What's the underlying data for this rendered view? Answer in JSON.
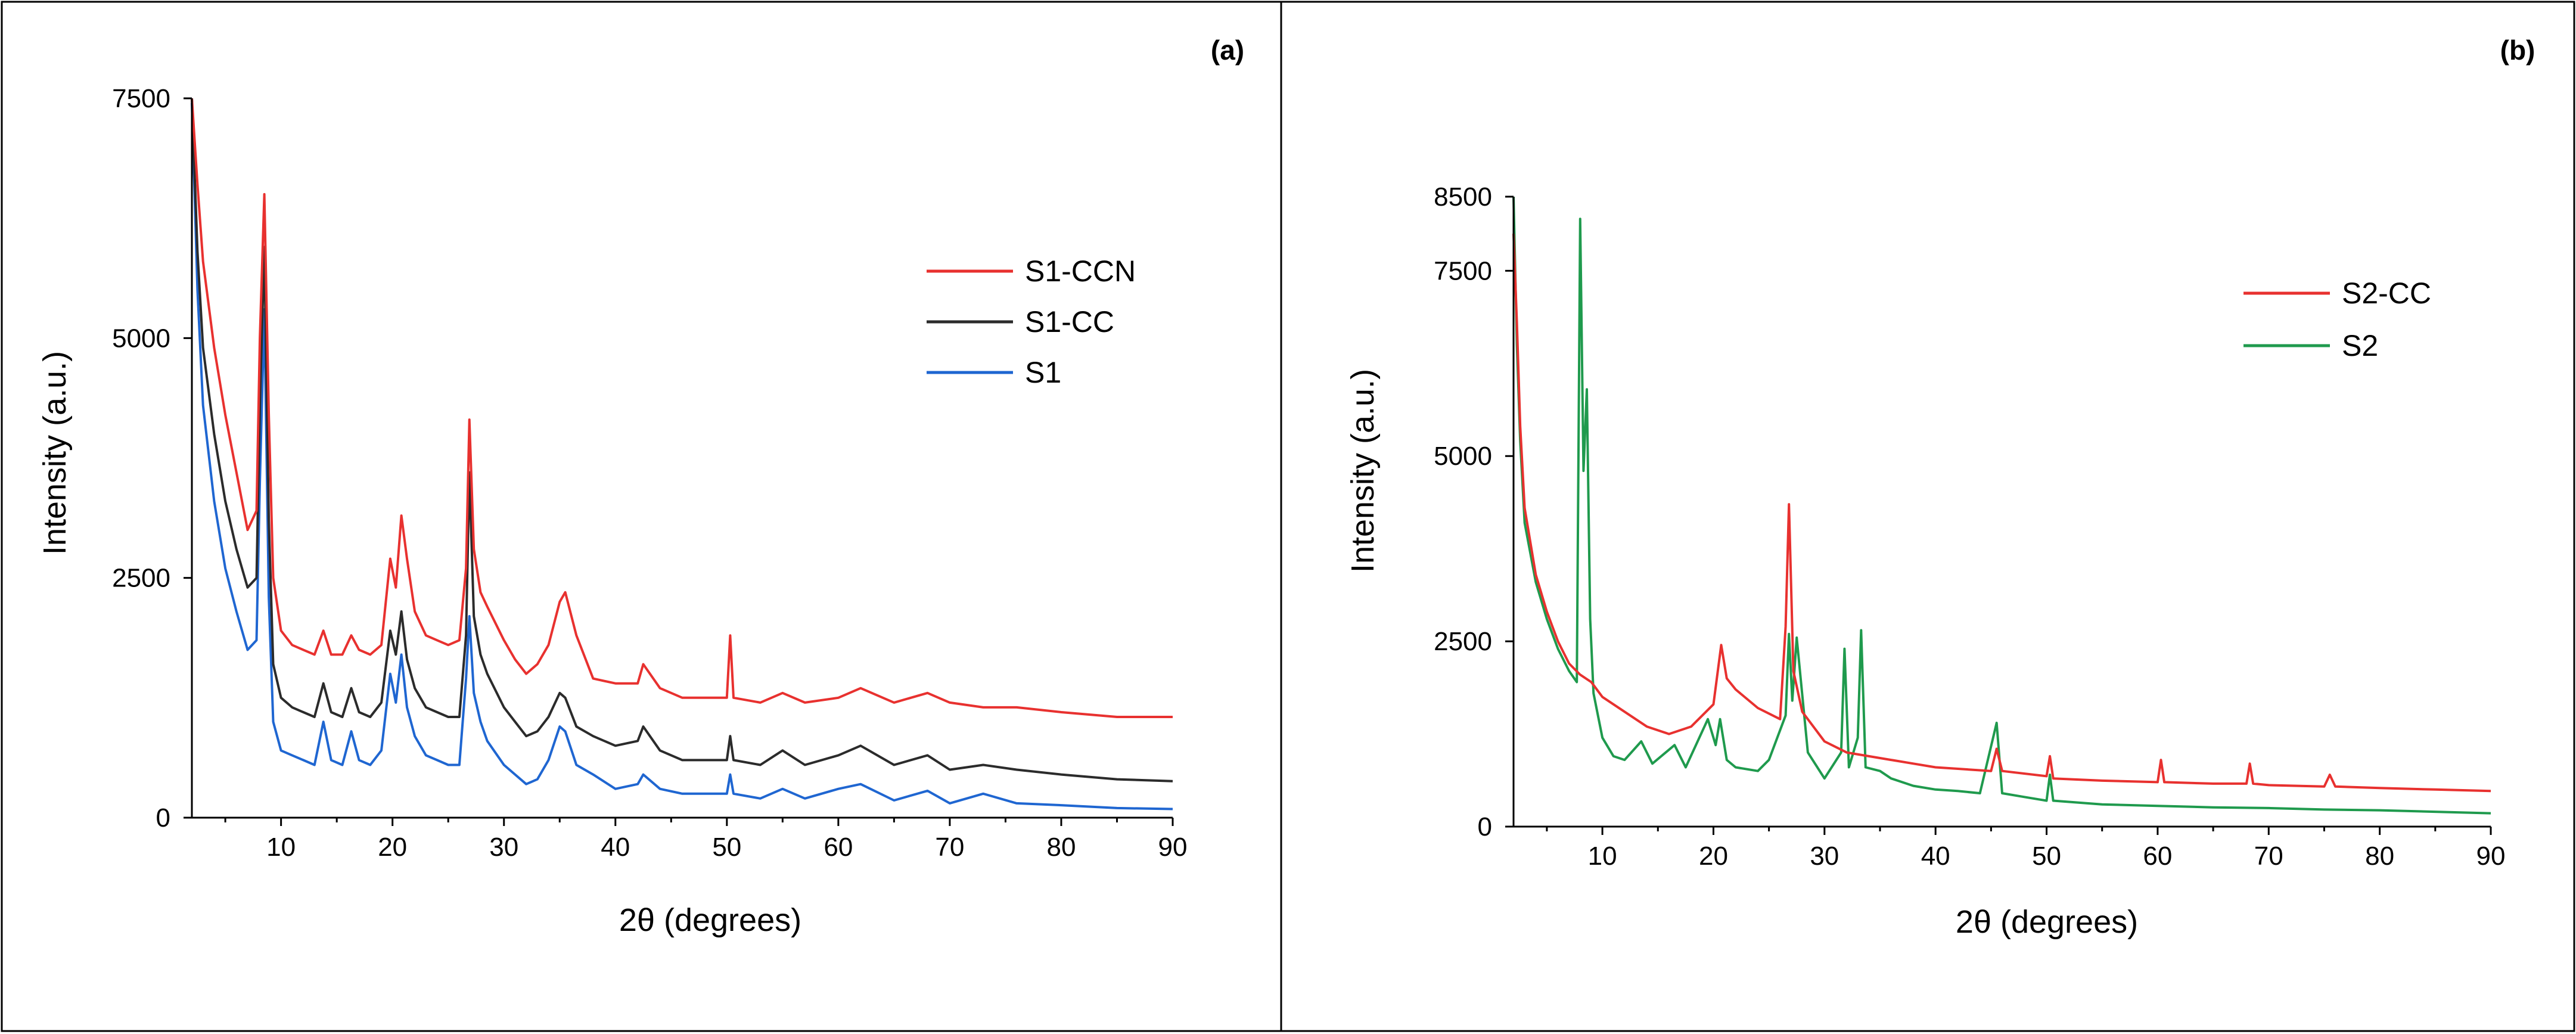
{
  "chart_data": [
    {
      "type": "line",
      "panel_label": "(a)",
      "xlabel": "2θ (degrees)",
      "ylabel": "Intensity (a.u.)",
      "xlim": [
        2,
        90
      ],
      "ylim": [
        0,
        7500
      ],
      "xticks": [
        10,
        20,
        30,
        40,
        50,
        60,
        70,
        80,
        90
      ],
      "yticks": [
        0,
        2500,
        5000,
        7500
      ],
      "legend_position": "right-upper",
      "series": [
        {
          "name": "S1-CCN",
          "color": "#e8312f",
          "x": [
            2,
            2.5,
            3,
            4,
            5,
            6,
            7,
            7.8,
            8.1,
            8.5,
            8.9,
            9.3,
            10,
            11,
            12,
            13,
            13.8,
            14.5,
            15.5,
            16.3,
            17,
            18,
            19,
            19.8,
            20.3,
            20.8,
            21.3,
            22,
            23,
            24,
            25,
            26,
            26.6,
            26.9,
            27.3,
            27.9,
            28.5,
            30,
            31,
            32,
            33,
            34,
            35,
            35.5,
            36.5,
            38,
            40,
            42,
            42.5,
            44,
            46,
            48,
            50,
            50.3,
            50.6,
            53,
            55,
            57,
            60,
            62,
            65,
            68,
            70,
            73,
            76,
            80,
            85,
            90
          ],
          "y": [
            7500,
            6600,
            5800,
            4900,
            4200,
            3600,
            3000,
            3200,
            5000,
            6500,
            4200,
            2500,
            1950,
            1800,
            1750,
            1700,
            1950,
            1700,
            1700,
            1900,
            1750,
            1700,
            1800,
            2700,
            2400,
            3150,
            2700,
            2150,
            1900,
            1850,
            1800,
            1850,
            2600,
            4150,
            2800,
            2350,
            2200,
            1850,
            1650,
            1500,
            1600,
            1800,
            2250,
            2350,
            1900,
            1450,
            1400,
            1400,
            1600,
            1350,
            1250,
            1250,
            1250,
            1900,
            1250,
            1200,
            1300,
            1200,
            1250,
            1350,
            1200,
            1300,
            1200,
            1150,
            1150,
            1100,
            1050,
            1050
          ]
        },
        {
          "name": "S1-CC",
          "color": "#2b2b2b",
          "x": [
            2,
            2.5,
            3,
            4,
            5,
            6,
            7,
            7.8,
            8.1,
            8.5,
            8.9,
            9.3,
            10,
            11,
            12,
            13,
            13.8,
            14.5,
            15.5,
            16.3,
            17,
            18,
            19,
            19.8,
            20.3,
            20.8,
            21.3,
            22,
            23,
            24,
            25,
            26,
            26.6,
            26.9,
            27.3,
            27.9,
            28.5,
            30,
            31,
            32,
            33,
            34,
            35,
            35.5,
            36.5,
            38,
            40,
            42,
            42.5,
            44,
            46,
            48,
            50,
            50.3,
            50.6,
            53,
            55,
            57,
            60,
            62,
            65,
            68,
            70,
            73,
            76,
            80,
            85,
            90
          ],
          "y": [
            7500,
            5900,
            4900,
            4000,
            3300,
            2800,
            2400,
            2500,
            4300,
            5950,
            3100,
            1600,
            1250,
            1150,
            1100,
            1050,
            1400,
            1100,
            1050,
            1350,
            1100,
            1050,
            1200,
            1950,
            1700,
            2150,
            1650,
            1350,
            1150,
            1100,
            1050,
            1050,
            1900,
            3600,
            2100,
            1700,
            1500,
            1150,
            1000,
            850,
            900,
            1050,
            1300,
            1250,
            950,
            850,
            750,
            800,
            950,
            700,
            600,
            600,
            600,
            850,
            600,
            550,
            700,
            550,
            650,
            750,
            550,
            650,
            500,
            550,
            500,
            450,
            400,
            380
          ]
        },
        {
          "name": "S1",
          "color": "#1f66d1",
          "x": [
            2,
            2.5,
            3,
            4,
            5,
            6,
            7,
            7.8,
            8.1,
            8.5,
            8.9,
            9.3,
            10,
            11,
            12,
            13,
            13.8,
            14.5,
            15.5,
            16.3,
            17,
            18,
            19,
            19.8,
            20.3,
            20.8,
            21.3,
            22,
            23,
            24,
            25,
            26,
            26.6,
            26.9,
            27.3,
            27.9,
            28.5,
            30,
            31,
            32,
            33,
            34,
            35,
            35.5,
            36.5,
            38,
            40,
            42,
            42.5,
            44,
            46,
            48,
            50,
            50.3,
            50.6,
            53,
            55,
            57,
            60,
            62,
            65,
            68,
            70,
            73,
            76,
            80,
            85,
            90
          ],
          "y": [
            7450,
            5500,
            4300,
            3300,
            2600,
            2150,
            1750,
            1850,
            3500,
            5300,
            2300,
            1000,
            700,
            650,
            600,
            550,
            1000,
            600,
            550,
            900,
            600,
            550,
            700,
            1500,
            1200,
            1700,
            1150,
            850,
            650,
            600,
            550,
            550,
            1450,
            2100,
            1300,
            1000,
            800,
            550,
            450,
            350,
            400,
            600,
            950,
            900,
            550,
            450,
            300,
            350,
            450,
            300,
            250,
            250,
            250,
            450,
            250,
            200,
            300,
            200,
            300,
            350,
            180,
            280,
            150,
            250,
            150,
            130,
            100,
            90
          ]
        }
      ]
    },
    {
      "type": "line",
      "panel_label": "(b)",
      "xlabel": "2θ (degrees)",
      "ylabel": "Intensity (a.u.)",
      "xlim": [
        2,
        90
      ],
      "ylim": [
        0,
        8500
      ],
      "xticks": [
        10,
        20,
        30,
        40,
        50,
        60,
        70,
        80,
        90
      ],
      "yticks": [
        0,
        2500,
        5000,
        7500,
        8500
      ],
      "legend_position": "right-upper",
      "series": [
        {
          "name": "S2-CC",
          "color": "#e8312f",
          "x": [
            2,
            2.3,
            2.6,
            3,
            4,
            5,
            6,
            7,
            8,
            9,
            10,
            12,
            14,
            16,
            18,
            20,
            20.7,
            21.2,
            22,
            24,
            26,
            26.5,
            26.8,
            27.2,
            28,
            30,
            32,
            34,
            36,
            38,
            40,
            45,
            45.5,
            46,
            50,
            50.3,
            50.6,
            55,
            60,
            60.3,
            60.6,
            65,
            68,
            68.3,
            68.6,
            70,
            75,
            75.5,
            76,
            80,
            85,
            90
          ],
          "y": [
            8000,
            6800,
            5400,
            4300,
            3400,
            2900,
            2500,
            2200,
            2050,
            1950,
            1750,
            1550,
            1350,
            1250,
            1350,
            1650,
            2450,
            2000,
            1850,
            1600,
            1450,
            2700,
            4350,
            2100,
            1550,
            1150,
            1000,
            950,
            900,
            850,
            800,
            750,
            1050,
            750,
            680,
            950,
            650,
            620,
            600,
            900,
            600,
            580,
            580,
            850,
            580,
            560,
            540,
            700,
            540,
            520,
            500,
            480
          ]
        },
        {
          "name": "S2",
          "color": "#1f9a4d",
          "x": [
            2,
            2.3,
            2.6,
            3,
            4,
            5,
            6,
            7,
            7.7,
            8,
            8.3,
            8.6,
            8.9,
            9.2,
            10,
            11,
            12,
            13.5,
            14.5,
            16.5,
            17.5,
            19.5,
            20.2,
            20.6,
            21.2,
            22,
            24,
            25,
            26.5,
            26.8,
            27.1,
            27.5,
            28.5,
            30,
            31.5,
            31.8,
            32.2,
            33,
            33.3,
            33.7,
            35,
            36,
            38,
            40,
            42,
            44,
            45.5,
            46,
            48,
            50,
            50.3,
            50.6,
            55,
            60,
            65,
            70,
            75,
            80,
            85,
            90
          ],
          "y": [
            8500,
            6500,
            5200,
            4100,
            3300,
            2800,
            2400,
            2100,
            1950,
            8200,
            4800,
            5900,
            2800,
            1800,
            1200,
            950,
            900,
            1150,
            850,
            1100,
            800,
            1450,
            1100,
            1450,
            900,
            800,
            750,
            900,
            1500,
            2600,
            1700,
            2550,
            1000,
            650,
            1000,
            2400,
            800,
            1200,
            2650,
            800,
            750,
            650,
            550,
            500,
            480,
            450,
            1400,
            450,
            400,
            350,
            700,
            350,
            300,
            280,
            260,
            250,
            230,
            220,
            200,
            180
          ]
        }
      ]
    }
  ]
}
